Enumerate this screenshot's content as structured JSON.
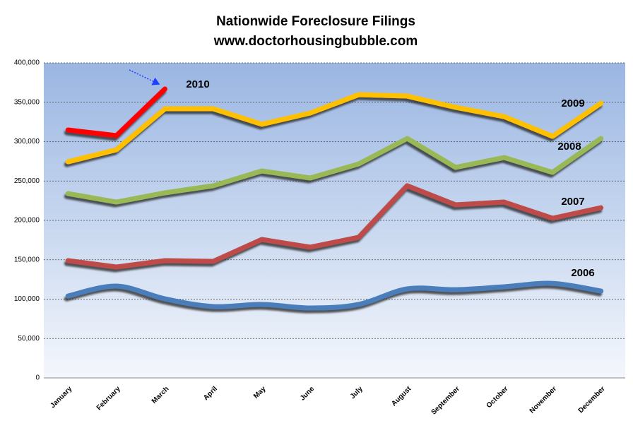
{
  "chart_data": {
    "type": "line",
    "title": "Nationwide Foreclosure Filings",
    "subtitle": "www.doctorhousingbubble.com",
    "categories": [
      "January",
      "February",
      "March",
      "April",
      "May",
      "June",
      "July",
      "August",
      "September",
      "October",
      "November",
      "December"
    ],
    "series": [
      {
        "name": "2006",
        "color": "#4a7ebb",
        "smooth": true,
        "values": [
          104000,
          116600,
          100400,
          90600,
          93300,
          88800,
          93300,
          113000,
          112000,
          115700,
          120000,
          110300
        ]
      },
      {
        "name": "2007",
        "color": "#be4b48",
        "values": [
          148900,
          140800,
          148900,
          148000,
          175800,
          166000,
          178500,
          244000,
          219700,
          223300,
          202700,
          216100
        ]
      },
      {
        "name": "2008",
        "color": "#98b954",
        "values": [
          234000,
          223300,
          235000,
          244000,
          262800,
          253800,
          271700,
          304000,
          267300,
          279800,
          261000,
          304000
        ]
      },
      {
        "name": "2009",
        "color": "#ffc000",
        "values": [
          274400,
          289700,
          341700,
          341700,
          322000,
          336300,
          359600,
          357800,
          343500,
          331800,
          306700,
          348800
        ]
      },
      {
        "name": "2010",
        "color": "#ff0000",
        "values": [
          314800,
          307600,
          366800,
          null,
          null,
          null,
          null,
          null,
          null,
          null,
          null,
          null
        ]
      }
    ],
    "annotations": [
      "2006",
      "2007",
      "2008",
      "2009",
      "2010"
    ],
    "ylim": [
      0,
      400000
    ],
    "yticks": [
      0,
      {
        "value": 50000,
        "label": "50,000"
      },
      {
        "value": 100000,
        "label": "100,000"
      },
      {
        "value": 150000,
        "label": "150,000"
      },
      {
        "value": 200000,
        "label": "200,000"
      },
      {
        "value": 250000,
        "label": "250,000"
      },
      {
        "value": 300000,
        "label": "300,000"
      },
      {
        "value": 350000,
        "label": "350,000"
      },
      {
        "value": 400000,
        "label": "400,000"
      }
    ],
    "grid": true
  }
}
